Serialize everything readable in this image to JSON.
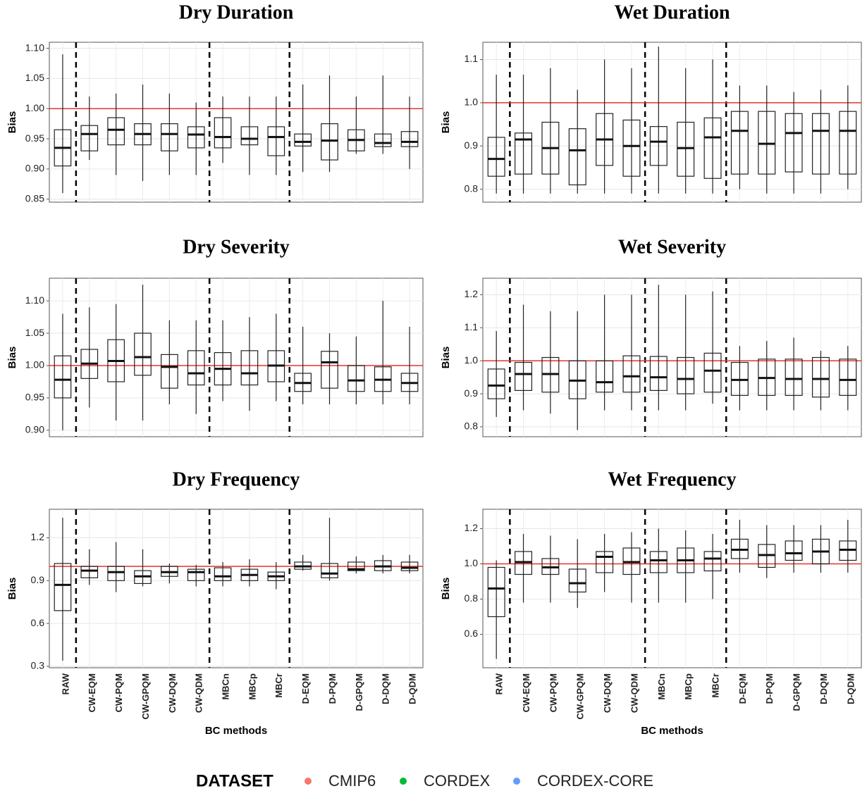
{
  "chart_data": [
    {
      "type": "box",
      "title": "Dry Duration",
      "ylabel": "Bias",
      "ylim": [
        0.845,
        1.11
      ],
      "yticks": [
        0.85,
        {
          "value": 0.9,
          "label": "0.90"
        },
        0.95,
        {
          "value": 1,
          "label": "1.00"
        },
        1.05,
        {
          "value": 1.1,
          "label": "1.10"
        }
      ],
      "reference_line": 1,
      "reference_color": "#e8322c",
      "grid": true,
      "stats": [
        {
          "min": 0.86,
          "q1": 0.905,
          "median": 0.935,
          "q3": 0.965,
          "max": 1.09
        },
        {
          "min": 0.915,
          "q1": 0.93,
          "median": 0.958,
          "q3": 0.972,
          "max": 1.02
        },
        {
          "min": 0.89,
          "q1": 0.94,
          "median": 0.965,
          "q3": 0.985,
          "max": 1.025
        },
        {
          "min": 0.88,
          "q1": 0.94,
          "median": 0.958,
          "q3": 0.975,
          "max": 1.04
        },
        {
          "min": 0.89,
          "q1": 0.93,
          "median": 0.958,
          "q3": 0.975,
          "max": 1.025
        },
        {
          "min": 0.89,
          "q1": 0.935,
          "median": 0.957,
          "q3": 0.97,
          "max": 1.01
        },
        {
          "min": 0.91,
          "q1": 0.935,
          "median": 0.953,
          "q3": 0.985,
          "max": 1.02
        },
        {
          "min": 0.89,
          "q1": 0.94,
          "median": 0.95,
          "q3": 0.97,
          "max": 1.02
        },
        {
          "min": 0.89,
          "q1": 0.922,
          "median": 0.953,
          "q3": 0.97,
          "max": 1.02
        },
        {
          "min": 0.895,
          "q1": 0.938,
          "median": 0.945,
          "q3": 0.958,
          "max": 1.04
        },
        {
          "min": 0.895,
          "q1": 0.915,
          "median": 0.947,
          "q3": 0.975,
          "max": 1.055
        },
        {
          "min": 0.925,
          "q1": 0.93,
          "median": 0.948,
          "q3": 0.965,
          "max": 1.02
        },
        {
          "min": 0.925,
          "q1": 0.937,
          "median": 0.943,
          "q3": 0.958,
          "max": 1.055
        },
        {
          "min": 0.9,
          "q1": 0.937,
          "median": 0.945,
          "q3": 0.962,
          "max": 1.02
        }
      ]
    },
    {
      "type": "box",
      "title": "Wet Duration",
      "ylabel": "Bias",
      "ylim": [
        0.77,
        1.14
      ],
      "yticks": [
        0.8,
        0.9,
        {
          "value": 1,
          "label": "1.0"
        },
        1.1
      ],
      "reference_line": 1,
      "reference_color": "#e8322c",
      "grid": true,
      "stats": [
        {
          "min": 0.79,
          "q1": 0.83,
          "median": 0.87,
          "q3": 0.92,
          "max": 1.065
        },
        {
          "min": 0.79,
          "q1": 0.835,
          "median": 0.915,
          "q3": 0.93,
          "max": 1.065
        },
        {
          "min": 0.79,
          "q1": 0.835,
          "median": 0.895,
          "q3": 0.955,
          "max": 1.08
        },
        {
          "min": 0.79,
          "q1": 0.81,
          "median": 0.89,
          "q3": 0.94,
          "max": 1.03
        },
        {
          "min": 0.79,
          "q1": 0.855,
          "median": 0.915,
          "q3": 0.975,
          "max": 1.1
        },
        {
          "min": 0.79,
          "q1": 0.83,
          "median": 0.9,
          "q3": 0.96,
          "max": 1.08
        },
        {
          "min": 0.79,
          "q1": 0.855,
          "median": 0.91,
          "q3": 0.945,
          "max": 1.13
        },
        {
          "min": 0.79,
          "q1": 0.83,
          "median": 0.895,
          "q3": 0.955,
          "max": 1.08
        },
        {
          "min": 0.79,
          "q1": 0.825,
          "median": 0.92,
          "q3": 0.965,
          "max": 1.1
        },
        {
          "min": 0.8,
          "q1": 0.835,
          "median": 0.935,
          "q3": 0.98,
          "max": 1.04
        },
        {
          "min": 0.79,
          "q1": 0.835,
          "median": 0.905,
          "q3": 0.98,
          "max": 1.04
        },
        {
          "min": 0.79,
          "q1": 0.84,
          "median": 0.93,
          "q3": 0.975,
          "max": 1.025
        },
        {
          "min": 0.79,
          "q1": 0.835,
          "median": 0.935,
          "q3": 0.975,
          "max": 1.03
        },
        {
          "min": 0.8,
          "q1": 0.835,
          "median": 0.935,
          "q3": 0.98,
          "max": 1.04
        }
      ]
    },
    {
      "type": "box",
      "title": "Dry Severity",
      "ylabel": "Bias",
      "ylim": [
        0.89,
        1.135
      ],
      "yticks": [
        {
          "value": 0.9,
          "label": "0.90"
        },
        0.95,
        {
          "value": 1,
          "label": "1.00"
        },
        1.05,
        {
          "value": 1.1,
          "label": "1.10"
        }
      ],
      "reference_line": 1,
      "reference_color": "#e8322c",
      "grid": true,
      "stats": [
        {
          "min": 0.9,
          "q1": 0.95,
          "median": 0.978,
          "q3": 1.015,
          "max": 1.08
        },
        {
          "min": 0.935,
          "q1": 0.98,
          "median": 1.003,
          "q3": 1.025,
          "max": 1.09
        },
        {
          "min": 0.915,
          "q1": 0.975,
          "median": 1.007,
          "q3": 1.04,
          "max": 1.095
        },
        {
          "min": 0.915,
          "q1": 0.985,
          "median": 1.013,
          "q3": 1.05,
          "max": 1.125
        },
        {
          "min": 0.94,
          "q1": 0.965,
          "median": 0.998,
          "q3": 1.017,
          "max": 1.07
        },
        {
          "min": 0.925,
          "q1": 0.97,
          "median": 0.988,
          "q3": 1.023,
          "max": 1.07
        },
        {
          "min": 0.945,
          "q1": 0.97,
          "median": 0.995,
          "q3": 1.02,
          "max": 1.07
        },
        {
          "min": 0.93,
          "q1": 0.97,
          "median": 0.988,
          "q3": 1.023,
          "max": 1.075
        },
        {
          "min": 0.945,
          "q1": 0.975,
          "median": 1.0,
          "q3": 1.023,
          "max": 1.08
        },
        {
          "min": 0.94,
          "q1": 0.96,
          "median": 0.973,
          "q3": 0.988,
          "max": 1.06
        },
        {
          "min": 0.94,
          "q1": 0.965,
          "median": 1.005,
          "q3": 1.022,
          "max": 1.05
        },
        {
          "min": 0.94,
          "q1": 0.96,
          "median": 0.977,
          "q3": 1.0,
          "max": 1.045
        },
        {
          "min": 0.94,
          "q1": 0.96,
          "median": 0.978,
          "q3": 0.998,
          "max": 1.1
        },
        {
          "min": 0.94,
          "q1": 0.96,
          "median": 0.973,
          "q3": 0.988,
          "max": 1.06
        }
      ]
    },
    {
      "type": "box",
      "title": "Wet Severity",
      "ylabel": "Bias",
      "ylim": [
        0.77,
        1.25
      ],
      "yticks": [
        0.8,
        0.9,
        {
          "value": 1,
          "label": "1.0"
        },
        1.1,
        1.2
      ],
      "reference_line": 1,
      "reference_color": "#e8322c",
      "grid": true,
      "stats": [
        {
          "min": 0.83,
          "q1": 0.885,
          "median": 0.925,
          "q3": 0.975,
          "max": 1.09
        },
        {
          "min": 0.85,
          "q1": 0.91,
          "median": 0.96,
          "q3": 0.995,
          "max": 1.17
        },
        {
          "min": 0.84,
          "q1": 0.905,
          "median": 0.96,
          "q3": 1.01,
          "max": 1.15
        },
        {
          "min": 0.79,
          "q1": 0.885,
          "median": 0.94,
          "q3": 1.0,
          "max": 1.15
        },
        {
          "min": 0.85,
          "q1": 0.905,
          "median": 0.935,
          "q3": 1.0,
          "max": 1.2
        },
        {
          "min": 0.85,
          "q1": 0.905,
          "median": 0.953,
          "q3": 1.015,
          "max": 1.2
        },
        {
          "min": 0.85,
          "q1": 0.91,
          "median": 0.95,
          "q3": 1.013,
          "max": 1.23
        },
        {
          "min": 0.85,
          "q1": 0.9,
          "median": 0.945,
          "q3": 1.01,
          "max": 1.2
        },
        {
          "min": 0.87,
          "q1": 0.905,
          "median": 0.97,
          "q3": 1.023,
          "max": 1.21
        },
        {
          "min": 0.85,
          "q1": 0.895,
          "median": 0.942,
          "q3": 0.995,
          "max": 1.045
        },
        {
          "min": 0.85,
          "q1": 0.895,
          "median": 0.948,
          "q3": 1.005,
          "max": 1.06
        },
        {
          "min": 0.85,
          "q1": 0.895,
          "median": 0.945,
          "q3": 1.005,
          "max": 1.07
        },
        {
          "min": 0.85,
          "q1": 0.89,
          "median": 0.945,
          "q3": 1.01,
          "max": 1.03
        },
        {
          "min": 0.85,
          "q1": 0.895,
          "median": 0.942,
          "q3": 1.005,
          "max": 1.045
        }
      ]
    },
    {
      "type": "box",
      "title": "Dry Frequency",
      "ylabel": "Bias",
      "xlabel": "BC methods",
      "ylim": [
        0.29,
        1.4
      ],
      "yticks": [
        0.3,
        0.6,
        0.9,
        1.2
      ],
      "categories": [
        "RAW",
        "CW-EQM",
        "CW-PQM",
        "CW-GPQM",
        "CW-DQM",
        "CW-QDM",
        "MBCn",
        "MBCp",
        "MBCr",
        "D-EQM",
        "D-PQM",
        "D-GPQM",
        "D-DQM",
        "D-QDM"
      ],
      "reference_line": 1,
      "reference_color": "#e8322c",
      "grid": true,
      "stats": [
        {
          "min": 0.34,
          "q1": 0.69,
          "median": 0.87,
          "q3": 1.02,
          "max": 1.34
        },
        {
          "min": 0.87,
          "q1": 0.92,
          "median": 0.97,
          "q3": 1.0,
          "max": 1.12
        },
        {
          "min": 0.82,
          "q1": 0.9,
          "median": 0.96,
          "q3": 1.0,
          "max": 1.17
        },
        {
          "min": 0.86,
          "q1": 0.88,
          "median": 0.93,
          "q3": 0.97,
          "max": 1.12
        },
        {
          "min": 0.88,
          "q1": 0.93,
          "median": 0.96,
          "q3": 1.0,
          "max": 1.02
        },
        {
          "min": 0.86,
          "q1": 0.9,
          "median": 0.96,
          "q3": 0.98,
          "max": 1.01
        },
        {
          "min": 0.86,
          "q1": 0.9,
          "median": 0.93,
          "q3": 0.99,
          "max": 1.03
        },
        {
          "min": 0.86,
          "q1": 0.9,
          "median": 0.94,
          "q3": 0.98,
          "max": 1.05
        },
        {
          "min": 0.84,
          "q1": 0.9,
          "median": 0.93,
          "q3": 0.96,
          "max": 1.03
        },
        {
          "min": 0.97,
          "q1": 0.98,
          "median": 1.0,
          "q3": 1.03,
          "max": 1.08
        },
        {
          "min": 0.9,
          "q1": 0.92,
          "median": 0.95,
          "q3": 1.02,
          "max": 1.34
        },
        {
          "min": 0.95,
          "q1": 0.97,
          "median": 0.98,
          "q3": 1.03,
          "max": 1.07
        },
        {
          "min": 0.95,
          "q1": 0.97,
          "median": 1.0,
          "q3": 1.04,
          "max": 1.08
        },
        {
          "min": 0.95,
          "q1": 0.97,
          "median": 0.99,
          "q3": 1.03,
          "max": 1.08
        }
      ]
    },
    {
      "type": "box",
      "title": "Wet Frequency",
      "ylabel": "Bias",
      "xlabel": "BC methods",
      "ylim": [
        0.41,
        1.31
      ],
      "yticks": [
        0.6,
        0.8,
        {
          "value": 1,
          "label": "1.0"
        },
        1.2
      ],
      "categories": [
        "RAW",
        "CW-EQM",
        "CW-PQM",
        "CW-GPQM",
        "CW-DQM",
        "CW-QDM",
        "MBCn",
        "MBCp",
        "MBCr",
        "D-EQM",
        "D-PQM",
        "D-GPQM",
        "D-DQM",
        "D-QDM"
      ],
      "reference_line": 1,
      "reference_color": "#e8322c",
      "grid": true,
      "stats": [
        {
          "min": 0.46,
          "q1": 0.7,
          "median": 0.86,
          "q3": 0.98,
          "max": 1.02
        },
        {
          "min": 0.78,
          "q1": 0.94,
          "median": 1.01,
          "q3": 1.07,
          "max": 1.17
        },
        {
          "min": 0.78,
          "q1": 0.94,
          "median": 0.98,
          "q3": 1.03,
          "max": 1.16
        },
        {
          "min": 0.75,
          "q1": 0.84,
          "median": 0.89,
          "q3": 0.97,
          "max": 1.14
        },
        {
          "min": 0.84,
          "q1": 0.95,
          "median": 1.04,
          "q3": 1.07,
          "max": 1.17
        },
        {
          "min": 0.78,
          "q1": 0.94,
          "median": 1.01,
          "q3": 1.09,
          "max": 1.18
        },
        {
          "min": 0.78,
          "q1": 0.95,
          "median": 1.02,
          "q3": 1.07,
          "max": 1.2
        },
        {
          "min": 0.78,
          "q1": 0.95,
          "median": 1.02,
          "q3": 1.09,
          "max": 1.19
        },
        {
          "min": 0.8,
          "q1": 0.96,
          "median": 1.03,
          "q3": 1.07,
          "max": 1.17
        },
        {
          "min": 0.95,
          "q1": 1.03,
          "median": 1.08,
          "q3": 1.14,
          "max": 1.25
        },
        {
          "min": 0.92,
          "q1": 0.98,
          "median": 1.05,
          "q3": 1.11,
          "max": 1.22
        },
        {
          "min": 0.95,
          "q1": 1.02,
          "median": 1.06,
          "q3": 1.13,
          "max": 1.22
        },
        {
          "min": 0.95,
          "q1": 1.0,
          "median": 1.07,
          "q3": 1.14,
          "max": 1.22
        },
        {
          "min": 0.95,
          "q1": 1.02,
          "median": 1.08,
          "q3": 1.13,
          "max": 1.25
        }
      ]
    }
  ],
  "legend": {
    "title": "DATASET",
    "series": [
      {
        "name": "CMIP6",
        "color": "#f8766d"
      },
      {
        "name": "CORDEX",
        "color": "#00ba38"
      },
      {
        "name": "CORDEX-CORE",
        "color": "#619cff"
      }
    ]
  }
}
